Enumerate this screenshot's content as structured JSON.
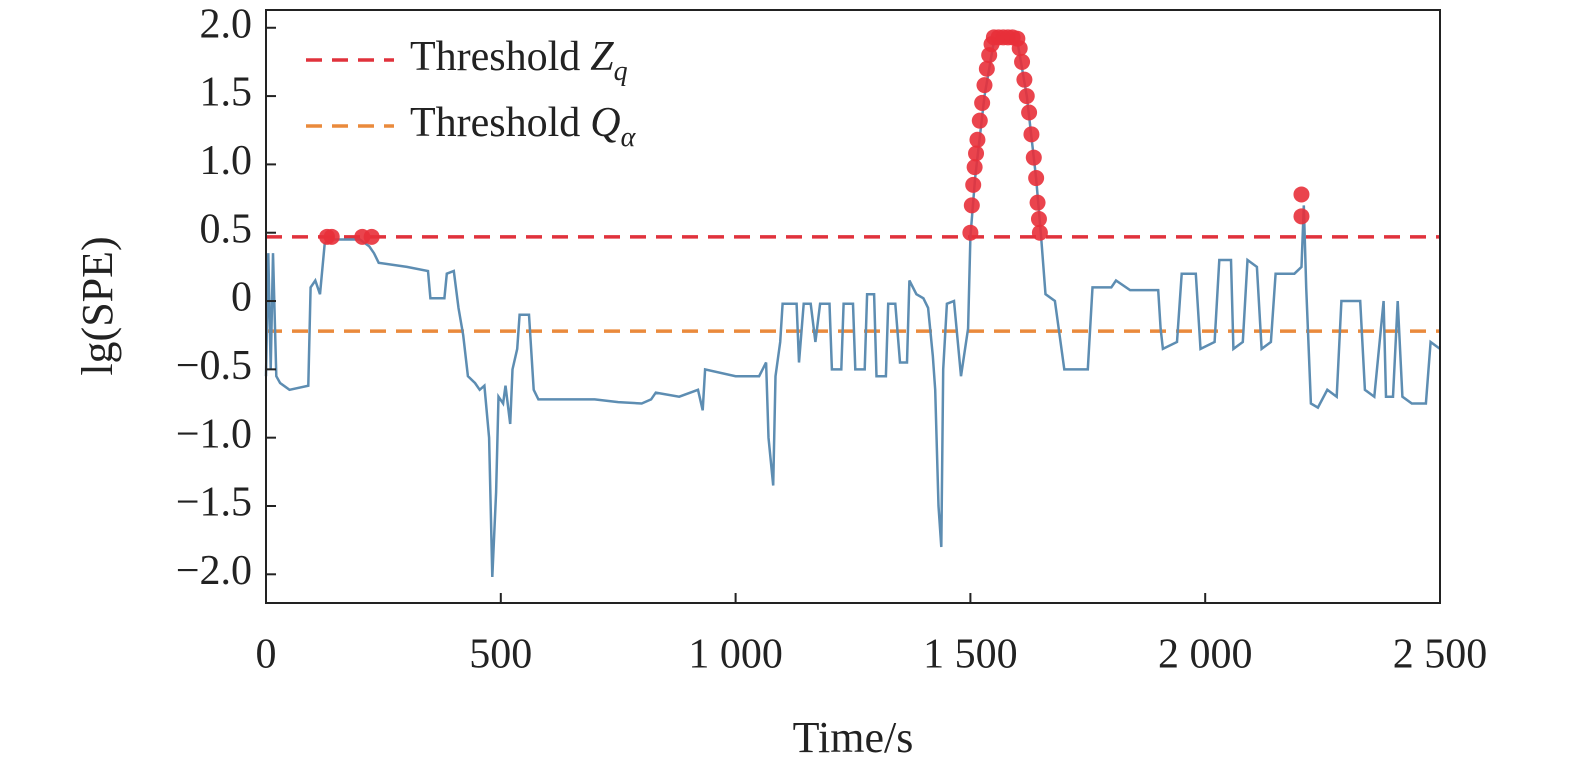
{
  "chart_data": {
    "type": "line",
    "xlabel": "Time/s",
    "ylabel": "lg(SPE)",
    "xlim": [
      0,
      2500
    ],
    "ylim": [
      -2.21,
      2.13
    ],
    "xticks": [
      0,
      500,
      {
        "value": 1000,
        "label": "1 000"
      },
      {
        "value": 1500,
        "label": "1 500"
      },
      {
        "value": 2000,
        "label": "2 000"
      },
      {
        "value": 2500,
        "label": "2 500"
      }
    ],
    "yticks": [
      {
        "value": -2.0,
        "label": "−2.0"
      },
      {
        "value": -1.5,
        "label": "−1.5"
      },
      {
        "value": -1.0,
        "label": "−1.0"
      },
      {
        "value": -0.5,
        "label": "−0.5"
      },
      0,
      0.5,
      {
        "value": 1.0,
        "label": "1.0"
      },
      1.5,
      {
        "value": 2.0,
        "label": "2.0"
      }
    ],
    "legend": "upper left",
    "thresholds": [
      {
        "name": "Threshold",
        "symbol": "Z",
        "subscript": "q",
        "color": "#e0323c",
        "value": 0.47
      },
      {
        "name": "Threshold",
        "symbol": "Q",
        "subscript": "α",
        "color": "#ea8a3c",
        "value": -0.22
      }
    ],
    "series": [
      {
        "color": "#5d8db2",
        "x": [
          0,
          5,
          10,
          15,
          22,
          30,
          50,
          90,
          95,
          105,
          115,
          125,
          135,
          200,
          220,
          230,
          240,
          300,
          345,
          350,
          380,
          385,
          400,
          410,
          420,
          430,
          445,
          455,
          465,
          475,
          482,
          490,
          495,
          505,
          510,
          520,
          525,
          535,
          540,
          560,
          570,
          580,
          650,
          700,
          750,
          800,
          820,
          830,
          880,
          920,
          930,
          935,
          1000,
          1050,
          1065,
          1070,
          1080,
          1085,
          1095,
          1100,
          1130,
          1135,
          1145,
          1160,
          1170,
          1180,
          1200,
          1205,
          1225,
          1230,
          1250,
          1255,
          1275,
          1280,
          1295,
          1300,
          1320,
          1325,
          1340,
          1350,
          1365,
          1370,
          1385,
          1400,
          1410,
          1420,
          1425,
          1432,
          1438,
          1442,
          1450,
          1465,
          1480,
          1495,
          1500,
          1510,
          1530,
          1550,
          1600,
          1620,
          1640,
          1650,
          1660,
          1680,
          1700,
          1750,
          1760,
          1800,
          1810,
          1840,
          1900,
          1905,
          1910,
          1940,
          1950,
          1980,
          1990,
          2020,
          2030,
          2055,
          2060,
          2080,
          2090,
          2110,
          2120,
          2140,
          2150,
          2190,
          2205,
          2210,
          2215,
          2225,
          2240,
          2260,
          2280,
          2290,
          2330,
          2340,
          2360,
          2380,
          2385,
          2400,
          2410,
          2420,
          2440,
          2470,
          2480,
          2500
        ],
        "values": [
          -0.55,
          0.35,
          -0.5,
          0.35,
          -0.55,
          -0.6,
          -0.65,
          -0.62,
          0.1,
          0.15,
          0.05,
          0.42,
          0.45,
          0.45,
          0.4,
          0.35,
          0.28,
          0.25,
          0.22,
          0.02,
          0.02,
          0.2,
          0.22,
          -0.05,
          -0.25,
          -0.55,
          -0.6,
          -0.65,
          -0.62,
          -1.0,
          -2.02,
          -1.4,
          -0.7,
          -0.75,
          -0.62,
          -0.9,
          -0.5,
          -0.35,
          -0.1,
          -0.1,
          -0.65,
          -0.72,
          -0.72,
          -0.72,
          -0.74,
          -0.75,
          -0.72,
          -0.67,
          -0.7,
          -0.65,
          -0.8,
          -0.5,
          -0.55,
          -0.55,
          -0.45,
          -1.0,
          -1.35,
          -0.55,
          -0.3,
          -0.02,
          -0.02,
          -0.45,
          -0.02,
          -0.02,
          -0.3,
          -0.02,
          -0.02,
          -0.5,
          -0.5,
          -0.02,
          -0.02,
          -0.5,
          -0.5,
          0.05,
          0.05,
          -0.55,
          -0.55,
          -0.02,
          -0.02,
          -0.45,
          -0.45,
          0.15,
          0.05,
          0.02,
          -0.05,
          -0.4,
          -0.65,
          -1.5,
          -1.8,
          -0.5,
          -0.02,
          0.0,
          -0.55,
          -0.2,
          0.47,
          0.9,
          1.5,
          1.9,
          1.9,
          1.5,
          0.9,
          0.5,
          0.05,
          0.0,
          -0.5,
          -0.5,
          0.1,
          0.1,
          0.15,
          0.08,
          0.08,
          -0.2,
          -0.35,
          -0.3,
          0.2,
          0.2,
          -0.35,
          -0.3,
          0.3,
          0.3,
          -0.35,
          -0.3,
          0.3,
          0.25,
          -0.35,
          -0.3,
          0.2,
          0.2,
          0.25,
          0.7,
          0.1,
          -0.75,
          -0.78,
          -0.65,
          -0.7,
          0.0,
          0.0,
          -0.65,
          -0.7,
          0.0,
          -0.7,
          -0.7,
          0.0,
          -0.7,
          -0.75,
          -0.75,
          -0.3,
          -0.35
        ]
      }
    ],
    "alarms": {
      "color": "#e8303a",
      "x": [
        130,
        140,
        205,
        225,
        1500,
        1503,
        1506,
        1509,
        1512,
        1515,
        1520,
        1525,
        1530,
        1535,
        1540,
        1545,
        1550,
        1560,
        1570,
        1580,
        1590,
        1600,
        1605,
        1610,
        1615,
        1620,
        1625,
        1630,
        1635,
        1640,
        1643,
        1646,
        1648,
        2205,
        2205
      ],
      "values": [
        0.47,
        0.47,
        0.47,
        0.47,
        0.5,
        0.7,
        0.85,
        0.98,
        1.08,
        1.18,
        1.32,
        1.45,
        1.58,
        1.7,
        1.8,
        1.88,
        1.93,
        1.93,
        1.93,
        1.93,
        1.93,
        1.92,
        1.85,
        1.75,
        1.62,
        1.5,
        1.38,
        1.22,
        1.05,
        0.9,
        0.72,
        0.6,
        0.5,
        0.78,
        0.62
      ]
    }
  }
}
